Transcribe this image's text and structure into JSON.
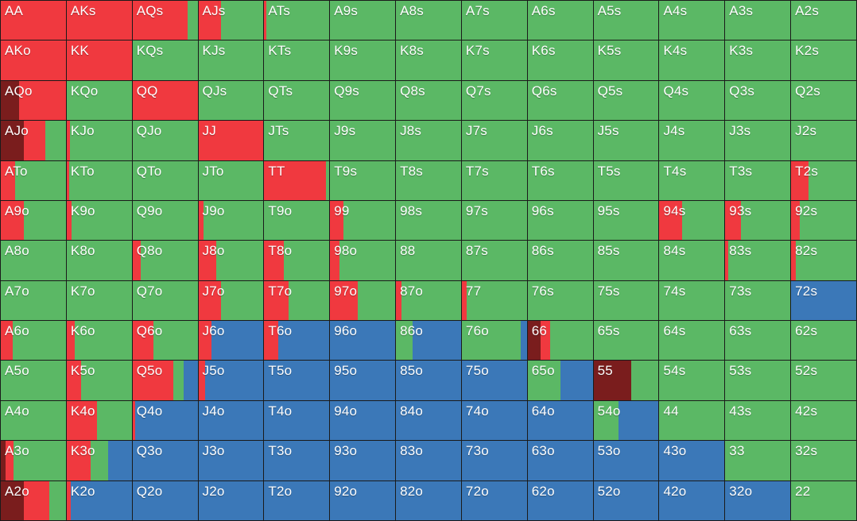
{
  "colors": {
    "raise": "#f0393f",
    "allin": "#7a1d1d",
    "call": "#3b78b8",
    "fold": "#5bb865"
  },
  "legend_order": [
    "allin",
    "raise",
    "call",
    "fold"
  ],
  "rows": [
    [
      {
        "hand": "AA",
        "mix": {
          "raise": 1
        }
      },
      {
        "hand": "AKs",
        "mix": {
          "raise": 1
        }
      },
      {
        "hand": "AQs",
        "mix": {
          "raise": 0.85
        }
      },
      {
        "hand": "AJs",
        "mix": {
          "raise": 0.35
        }
      },
      {
        "hand": "ATs",
        "mix": {
          "raise": 0.03
        }
      },
      {
        "hand": "A9s",
        "mix": {}
      },
      {
        "hand": "A8s",
        "mix": {}
      },
      {
        "hand": "A7s",
        "mix": {}
      },
      {
        "hand": "A6s",
        "mix": {}
      },
      {
        "hand": "A5s",
        "mix": {}
      },
      {
        "hand": "A4s",
        "mix": {}
      },
      {
        "hand": "A3s",
        "mix": {}
      },
      {
        "hand": "A2s",
        "mix": {}
      }
    ],
    [
      {
        "hand": "AKo",
        "mix": {
          "raise": 1
        }
      },
      {
        "hand": "KK",
        "mix": {
          "raise": 1
        }
      },
      {
        "hand": "KQs",
        "mix": {}
      },
      {
        "hand": "KJs",
        "mix": {}
      },
      {
        "hand": "KTs",
        "mix": {}
      },
      {
        "hand": "K9s",
        "mix": {}
      },
      {
        "hand": "K8s",
        "mix": {}
      },
      {
        "hand": "K7s",
        "mix": {}
      },
      {
        "hand": "K6s",
        "mix": {}
      },
      {
        "hand": "K5s",
        "mix": {}
      },
      {
        "hand": "K4s",
        "mix": {}
      },
      {
        "hand": "K3s",
        "mix": {}
      },
      {
        "hand": "K2s",
        "mix": {}
      }
    ],
    [
      {
        "hand": "AQo",
        "mix": {
          "allin": 0.28,
          "raise": 0.72
        }
      },
      {
        "hand": "KQo",
        "mix": {}
      },
      {
        "hand": "QQ",
        "mix": {
          "raise": 1
        }
      },
      {
        "hand": "QJs",
        "mix": {}
      },
      {
        "hand": "QTs",
        "mix": {}
      },
      {
        "hand": "Q9s",
        "mix": {}
      },
      {
        "hand": "Q8s",
        "mix": {}
      },
      {
        "hand": "Q7s",
        "mix": {}
      },
      {
        "hand": "Q6s",
        "mix": {}
      },
      {
        "hand": "Q5s",
        "mix": {}
      },
      {
        "hand": "Q4s",
        "mix": {}
      },
      {
        "hand": "Q3s",
        "mix": {}
      },
      {
        "hand": "Q2s",
        "mix": {}
      }
    ],
    [
      {
        "hand": "AJo",
        "mix": {
          "allin": 0.35,
          "raise": 0.33
        }
      },
      {
        "hand": "KJo",
        "mix": {
          "raise": 0.05
        }
      },
      {
        "hand": "QJo",
        "mix": {}
      },
      {
        "hand": "JJ",
        "mix": {
          "raise": 1
        }
      },
      {
        "hand": "JTs",
        "mix": {}
      },
      {
        "hand": "J9s",
        "mix": {}
      },
      {
        "hand": "J8s",
        "mix": {}
      },
      {
        "hand": "J7s",
        "mix": {}
      },
      {
        "hand": "J6s",
        "mix": {}
      },
      {
        "hand": "J5s",
        "mix": {}
      },
      {
        "hand": "J4s",
        "mix": {}
      },
      {
        "hand": "J3s",
        "mix": {}
      },
      {
        "hand": "J2s",
        "mix": {}
      }
    ],
    [
      {
        "hand": "ATo",
        "mix": {
          "raise": 0.22
        }
      },
      {
        "hand": "KTo",
        "mix": {
          "raise": 0.04
        }
      },
      {
        "hand": "QTo",
        "mix": {}
      },
      {
        "hand": "JTo",
        "mix": {}
      },
      {
        "hand": "TT",
        "mix": {
          "raise": 0.95
        }
      },
      {
        "hand": "T9s",
        "mix": {}
      },
      {
        "hand": "T8s",
        "mix": {}
      },
      {
        "hand": "T7s",
        "mix": {}
      },
      {
        "hand": "T6s",
        "mix": {}
      },
      {
        "hand": "T5s",
        "mix": {}
      },
      {
        "hand": "T4s",
        "mix": {}
      },
      {
        "hand": "T3s",
        "mix": {}
      },
      {
        "hand": "T2s",
        "mix": {
          "raise": 0.27
        }
      }
    ],
    [
      {
        "hand": "A9o",
        "mix": {
          "raise": 0.35
        }
      },
      {
        "hand": "K9o",
        "mix": {
          "raise": 0.07
        }
      },
      {
        "hand": "Q9o",
        "mix": {}
      },
      {
        "hand": "J9o",
        "mix": {
          "raise": 0.08
        }
      },
      {
        "hand": "T9o",
        "mix": {}
      },
      {
        "hand": "99",
        "mix": {
          "raise": 0.2
        }
      },
      {
        "hand": "98s",
        "mix": {}
      },
      {
        "hand": "97s",
        "mix": {}
      },
      {
        "hand": "96s",
        "mix": {}
      },
      {
        "hand": "95s",
        "mix": {}
      },
      {
        "hand": "94s",
        "mix": {
          "raise": 0.35
        }
      },
      {
        "hand": "93s",
        "mix": {
          "raise": 0.24
        }
      },
      {
        "hand": "92s",
        "mix": {
          "raise": 0.13
        }
      }
    ],
    [
      {
        "hand": "A8o",
        "mix": {}
      },
      {
        "hand": "K8o",
        "mix": {}
      },
      {
        "hand": "Q8o",
        "mix": {
          "raise": 0.12
        }
      },
      {
        "hand": "J8o",
        "mix": {
          "raise": 0.28
        }
      },
      {
        "hand": "T8o",
        "mix": {
          "raise": 0.3
        }
      },
      {
        "hand": "98o",
        "mix": {
          "raise": 0.15
        }
      },
      {
        "hand": "88",
        "mix": {}
      },
      {
        "hand": "87s",
        "mix": {}
      },
      {
        "hand": "86s",
        "mix": {}
      },
      {
        "hand": "85s",
        "mix": {}
      },
      {
        "hand": "84s",
        "mix": {}
      },
      {
        "hand": "83s",
        "mix": {
          "raise": 0.05
        }
      },
      {
        "hand": "82s",
        "mix": {
          "raise": 0.07
        }
      }
    ],
    [
      {
        "hand": "A7o",
        "mix": {}
      },
      {
        "hand": "K7o",
        "mix": {}
      },
      {
        "hand": "Q7o",
        "mix": {}
      },
      {
        "hand": "J7o",
        "mix": {
          "raise": 0.35
        }
      },
      {
        "hand": "T7o",
        "mix": {
          "raise": 0.38
        }
      },
      {
        "hand": "97o",
        "mix": {
          "raise": 0.42
        }
      },
      {
        "hand": "87o",
        "mix": {
          "raise": 0.08
        }
      },
      {
        "hand": "77",
        "mix": {
          "raise": 0.08
        }
      },
      {
        "hand": "76s",
        "mix": {}
      },
      {
        "hand": "75s",
        "mix": {}
      },
      {
        "hand": "74s",
        "mix": {}
      },
      {
        "hand": "73s",
        "mix": {}
      },
      {
        "hand": "72s",
        "mix": {
          "call": 1
        }
      }
    ],
    [
      {
        "hand": "A6o",
        "mix": {
          "raise": 0.18
        }
      },
      {
        "hand": "K6o",
        "mix": {
          "raise": 0.13
        }
      },
      {
        "hand": "Q6o",
        "mix": {
          "raise": 0.32
        }
      },
      {
        "hand": "J6o",
        "mix": {
          "raise": 0.2,
          "call": 0.8
        }
      },
      {
        "hand": "T6o",
        "mix": {
          "raise": 0.22,
          "call": 0.78
        }
      },
      {
        "hand": "96o",
        "mix": {
          "call": 1
        }
      },
      {
        "hand": "86o",
        "mix": {
          "fold": 0.25,
          "call": 0.75
        }
      },
      {
        "hand": "76o",
        "mix": {
          "fold": 0.9,
          "call": 0.1
        }
      },
      {
        "hand": "66",
        "mix": {
          "allin": 0.2,
          "raise": 0.15
        }
      },
      {
        "hand": "65s",
        "mix": {}
      },
      {
        "hand": "64s",
        "mix": {}
      },
      {
        "hand": "63s",
        "mix": {}
      },
      {
        "hand": "62s",
        "mix": {}
      }
    ],
    [
      {
        "hand": "A5o",
        "mix": {}
      },
      {
        "hand": "K5o",
        "mix": {
          "raise": 0.22
        }
      },
      {
        "hand": "Q5o",
        "mix": {
          "raise": 0.63,
          "fold": 0.15,
          "call": 0.22
        }
      },
      {
        "hand": "J5o",
        "mix": {
          "raise": 0.1,
          "call": 0.9
        }
      },
      {
        "hand": "T5o",
        "mix": {
          "call": 1
        }
      },
      {
        "hand": "95o",
        "mix": {
          "call": 1
        }
      },
      {
        "hand": "85o",
        "mix": {
          "call": 1
        }
      },
      {
        "hand": "75o",
        "mix": {
          "call": 1
        }
      },
      {
        "hand": "65o",
        "mix": {
          "fold": 0.5,
          "call": 0.5
        }
      },
      {
        "hand": "55",
        "mix": {
          "allin": 0.58
        }
      },
      {
        "hand": "54s",
        "mix": {}
      },
      {
        "hand": "53s",
        "mix": {}
      },
      {
        "hand": "52s",
        "mix": {}
      }
    ],
    [
      {
        "hand": "A4o",
        "mix": {}
      },
      {
        "hand": "K4o",
        "mix": {
          "raise": 0.47
        }
      },
      {
        "hand": "Q4o",
        "mix": {
          "raise": 0.04,
          "call": 0.96
        }
      },
      {
        "hand": "J4o",
        "mix": {
          "call": 1
        }
      },
      {
        "hand": "T4o",
        "mix": {
          "call": 1
        }
      },
      {
        "hand": "94o",
        "mix": {
          "call": 1
        }
      },
      {
        "hand": "84o",
        "mix": {
          "call": 1
        }
      },
      {
        "hand": "74o",
        "mix": {
          "call": 1
        }
      },
      {
        "hand": "64o",
        "mix": {
          "call": 1
        }
      },
      {
        "hand": "54o",
        "mix": {
          "fold": 0.38,
          "call": 0.62
        }
      },
      {
        "hand": "44",
        "mix": {}
      },
      {
        "hand": "43s",
        "mix": {}
      },
      {
        "hand": "42s",
        "mix": {}
      }
    ],
    [
      {
        "hand": "A3o",
        "mix": {
          "allin": 0.07,
          "raise": 0.13
        }
      },
      {
        "hand": "K3o",
        "mix": {
          "raise": 0.37,
          "fold": 0.27,
          "call": 0.36
        }
      },
      {
        "hand": "Q3o",
        "mix": {
          "call": 1
        }
      },
      {
        "hand": "J3o",
        "mix": {
          "call": 1
        }
      },
      {
        "hand": "T3o",
        "mix": {
          "call": 1
        }
      },
      {
        "hand": "93o",
        "mix": {
          "call": 1
        }
      },
      {
        "hand": "83o",
        "mix": {
          "call": 1
        }
      },
      {
        "hand": "73o",
        "mix": {
          "call": 1
        }
      },
      {
        "hand": "63o",
        "mix": {
          "call": 1
        }
      },
      {
        "hand": "53o",
        "mix": {
          "call": 1
        }
      },
      {
        "hand": "43o",
        "mix": {
          "call": 1
        }
      },
      {
        "hand": "33",
        "mix": {}
      },
      {
        "hand": "32s",
        "mix": {}
      }
    ],
    [
      {
        "hand": "A2o",
        "mix": {
          "allin": 0.35,
          "raise": 0.4
        }
      },
      {
        "hand": "K2o",
        "mix": {
          "raise": 0.06,
          "call": 0.94
        }
      },
      {
        "hand": "Q2o",
        "mix": {
          "call": 1
        }
      },
      {
        "hand": "J2o",
        "mix": {
          "call": 1
        }
      },
      {
        "hand": "T2o",
        "mix": {
          "call": 1
        }
      },
      {
        "hand": "92o",
        "mix": {
          "call": 1
        }
      },
      {
        "hand": "82o",
        "mix": {
          "call": 1
        }
      },
      {
        "hand": "72o",
        "mix": {
          "call": 1
        }
      },
      {
        "hand": "62o",
        "mix": {
          "call": 1
        }
      },
      {
        "hand": "52o",
        "mix": {
          "call": 1
        }
      },
      {
        "hand": "42o",
        "mix": {
          "call": 1
        }
      },
      {
        "hand": "32o",
        "mix": {
          "call": 1
        }
      },
      {
        "hand": "22",
        "mix": {}
      }
    ]
  ]
}
